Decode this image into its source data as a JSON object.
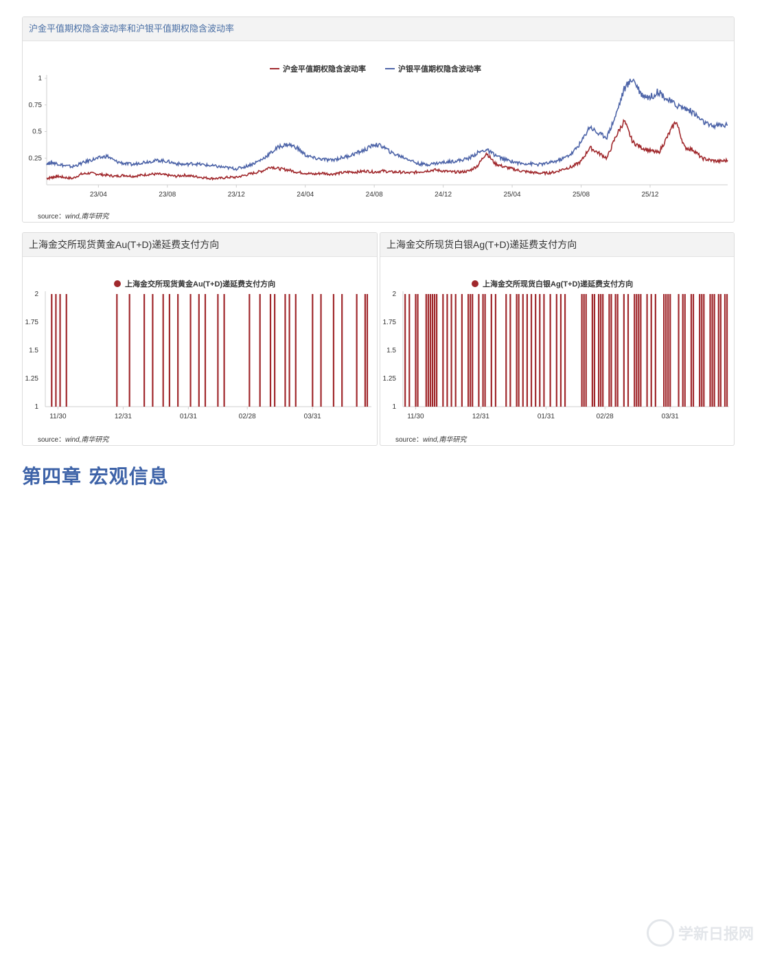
{
  "chart_data": [
    {
      "id": "vol",
      "type": "line",
      "title": "沪金平值期权隐含波动率和沪银平值期权隐含波动率",
      "legend_position": "top",
      "ylim": [
        0,
        1
      ],
      "y_ticks": [
        "1",
        "0.75",
        "0.5",
        "0.25"
      ],
      "y_tick_values": [
        1,
        0.75,
        0.5,
        0.25
      ],
      "x_ticks": [
        "23/04",
        "23/08",
        "23/12",
        "24/04",
        "24/08",
        "24/12",
        "25/04",
        "25/08",
        "25/12"
      ],
      "x_range": [
        "2023-01",
        "2026-04"
      ],
      "series": [
        {
          "name": "沪金平值期权隐含波动率",
          "color": "#a0282c",
          "points": [
            [
              0,
              0.06
            ],
            [
              0.3,
              0.07
            ],
            [
              0.6,
              0.08
            ],
            [
              1,
              0.07
            ],
            [
              1.5,
              0.06
            ],
            [
              2,
              0.1
            ],
            [
              2.5,
              0.11
            ],
            [
              3,
              0.1
            ],
            [
              3.5,
              0.09
            ],
            [
              4,
              0.08
            ],
            [
              4.5,
              0.09
            ],
            [
              5,
              0.08
            ],
            [
              5.5,
              0.09
            ],
            [
              6,
              0.1
            ],
            [
              6.5,
              0.1
            ],
            [
              7,
              0.09
            ],
            [
              7.5,
              0.08
            ],
            [
              8,
              0.09
            ],
            [
              8.5,
              0.08
            ],
            [
              9,
              0.07
            ],
            [
              9.5,
              0.06
            ],
            [
              10,
              0.06
            ],
            [
              10.5,
              0.07
            ],
            [
              11,
              0.07
            ],
            [
              11.5,
              0.09
            ],
            [
              12,
              0.11
            ],
            [
              12.5,
              0.13
            ],
            [
              13,
              0.17
            ],
            [
              13.5,
              0.15
            ],
            [
              14,
              0.14
            ],
            [
              14.5,
              0.12
            ],
            [
              15,
              0.11
            ],
            [
              15.5,
              0.1
            ],
            [
              16,
              0.11
            ],
            [
              16.5,
              0.1
            ],
            [
              17,
              0.11
            ],
            [
              17.5,
              0.12
            ],
            [
              18,
              0.12
            ],
            [
              18.5,
              0.13
            ],
            [
              19,
              0.12
            ],
            [
              19.5,
              0.13
            ],
            [
              20,
              0.12
            ],
            [
              20.5,
              0.12
            ],
            [
              21,
              0.11
            ],
            [
              21.5,
              0.12
            ],
            [
              22,
              0.13
            ],
            [
              22.5,
              0.14
            ],
            [
              23,
              0.13
            ],
            [
              23.5,
              0.12
            ],
            [
              24,
              0.12
            ],
            [
              24.5,
              0.13
            ],
            [
              25,
              0.18
            ],
            [
              25.5,
              0.3
            ],
            [
              26,
              0.2
            ],
            [
              26.5,
              0.17
            ],
            [
              27,
              0.15
            ],
            [
              27.5,
              0.13
            ],
            [
              28,
              0.12
            ],
            [
              28.5,
              0.11
            ],
            [
              29,
              0.11
            ],
            [
              29.5,
              0.12
            ],
            [
              30,
              0.15
            ],
            [
              30.5,
              0.17
            ],
            [
              31,
              0.22
            ],
            [
              31.5,
              0.35
            ],
            [
              32,
              0.3
            ],
            [
              32.5,
              0.25
            ],
            [
              33,
              0.45
            ],
            [
              33.5,
              0.6
            ],
            [
              34,
              0.4
            ],
            [
              34.5,
              0.35
            ],
            [
              35,
              0.32
            ],
            [
              35.5,
              0.3
            ],
            [
              36,
              0.45
            ],
            [
              36.5,
              0.6
            ],
            [
              37,
              0.35
            ],
            [
              37.5,
              0.33
            ],
            [
              38,
              0.25
            ],
            [
              38.5,
              0.23
            ],
            [
              39,
              0.22
            ],
            [
              39.5,
              0.23
            ]
          ]
        },
        {
          "name": "沪银平值期权隐含波动率",
          "color": "#4d64a8",
          "points": [
            [
              0,
              0.2
            ],
            [
              0.3,
              0.21
            ],
            [
              0.6,
              0.2
            ],
            [
              1,
              0.18
            ],
            [
              1.5,
              0.17
            ],
            [
              2,
              0.2
            ],
            [
              2.5,
              0.23
            ],
            [
              3,
              0.25
            ],
            [
              3.5,
              0.27
            ],
            [
              4,
              0.22
            ],
            [
              4.5,
              0.2
            ],
            [
              5,
              0.19
            ],
            [
              5.5,
              0.21
            ],
            [
              6,
              0.22
            ],
            [
              6.5,
              0.23
            ],
            [
              7,
              0.22
            ],
            [
              7.5,
              0.2
            ],
            [
              8,
              0.19
            ],
            [
              8.5,
              0.2
            ],
            [
              9,
              0.19
            ],
            [
              9.5,
              0.18
            ],
            [
              10,
              0.17
            ],
            [
              10.5,
              0.16
            ],
            [
              11,
              0.15
            ],
            [
              11.5,
              0.17
            ],
            [
              12,
              0.2
            ],
            [
              12.5,
              0.24
            ],
            [
              13,
              0.3
            ],
            [
              13.5,
              0.36
            ],
            [
              14,
              0.38
            ],
            [
              14.5,
              0.35
            ],
            [
              15,
              0.28
            ],
            [
              15.5,
              0.25
            ],
            [
              16,
              0.24
            ],
            [
              16.5,
              0.23
            ],
            [
              17,
              0.25
            ],
            [
              17.5,
              0.27
            ],
            [
              18,
              0.3
            ],
            [
              18.5,
              0.33
            ],
            [
              19,
              0.38
            ],
            [
              19.5,
              0.36
            ],
            [
              20,
              0.3
            ],
            [
              20.5,
              0.27
            ],
            [
              21,
              0.24
            ],
            [
              21.5,
              0.2
            ],
            [
              22,
              0.19
            ],
            [
              22.5,
              0.2
            ],
            [
              23,
              0.21
            ],
            [
              23.5,
              0.22
            ],
            [
              24,
              0.23
            ],
            [
              24.5,
              0.25
            ],
            [
              25,
              0.3
            ],
            [
              25.5,
              0.33
            ],
            [
              26,
              0.28
            ],
            [
              26.5,
              0.24
            ],
            [
              27,
              0.22
            ],
            [
              27.5,
              0.2
            ],
            [
              28,
              0.2
            ],
            [
              28.5,
              0.19
            ],
            [
              29,
              0.2
            ],
            [
              29.5,
              0.22
            ],
            [
              30,
              0.25
            ],
            [
              30.5,
              0.3
            ],
            [
              31,
              0.4
            ],
            [
              31.5,
              0.55
            ],
            [
              32,
              0.48
            ],
            [
              32.5,
              0.45
            ],
            [
              33,
              0.65
            ],
            [
              33.5,
              0.9
            ],
            [
              34,
              1.0
            ],
            [
              34.5,
              0.85
            ],
            [
              35,
              0.82
            ],
            [
              35.5,
              0.88
            ],
            [
              36,
              0.8
            ],
            [
              36.5,
              0.75
            ],
            [
              37,
              0.72
            ],
            [
              37.5,
              0.68
            ],
            [
              38,
              0.6
            ],
            [
              38.5,
              0.55
            ],
            [
              39,
              0.56
            ],
            [
              39.5,
              0.56
            ]
          ]
        }
      ]
    },
    {
      "id": "au",
      "type": "bar",
      "title": "上海金交所现货黄金Au(T+D)递延费支付方向",
      "legend_position": "top",
      "series_name": "上海金交所现货黄金Au(T+D)递延费支付方向",
      "color": "#a0282c",
      "ylim": [
        1,
        2
      ],
      "y_ticks": [
        "2",
        "1.75",
        "1.5",
        "1.25",
        "1"
      ],
      "y_tick_values": [
        2,
        1.75,
        1.5,
        1.25,
        1
      ],
      "x_ticks": [
        "11/30",
        "12/31",
        "01/31",
        "02/28",
        "03/31"
      ],
      "x_tick_days": [
        0,
        31,
        62,
        90,
        121
      ],
      "value_two_days": [
        -3,
        -1,
        1,
        4,
        28,
        34,
        41,
        45,
        50,
        53,
        57,
        63,
        67,
        70,
        76,
        79,
        91,
        96,
        101,
        103,
        108,
        110,
        113,
        121,
        125,
        131,
        135,
        142,
        146,
        147
      ]
    },
    {
      "id": "ag",
      "type": "bar",
      "title": "上海金交所现货白银Ag(T+D)递延费支付方向",
      "legend_position": "top",
      "series_name": "上海金交所现货白银Ag(T+D)递延费支付方向",
      "color": "#a0282c",
      "ylim": [
        1,
        2
      ],
      "y_ticks": [
        "2",
        "1.75",
        "1.5",
        "1.25",
        "1"
      ],
      "y_tick_values": [
        2,
        1.75,
        1.5,
        1.25,
        1
      ],
      "x_ticks": [
        "11/30",
        "12/31",
        "01/31",
        "02/28",
        "03/31"
      ],
      "x_tick_days": [
        0,
        31,
        62,
        90,
        121
      ],
      "value_two_days": [
        -5,
        -3,
        0,
        1,
        5,
        6,
        7,
        8,
        9,
        10,
        13,
        15,
        17,
        19,
        22,
        25,
        26,
        27,
        30,
        32,
        33,
        36,
        38,
        43,
        45,
        48,
        49,
        51,
        53,
        55,
        57,
        59,
        61,
        64,
        67,
        69,
        71,
        79,
        80,
        81,
        84,
        85,
        87,
        88,
        89,
        92,
        93,
        95,
        96,
        99,
        101,
        104,
        105,
        106,
        107,
        110,
        112,
        114,
        118,
        119,
        120,
        121,
        125,
        127,
        128,
        131,
        132,
        135,
        136,
        137,
        140,
        141,
        142,
        144,
        145,
        147,
        148
      ]
    }
  ],
  "source": {
    "prefix": "source：",
    "text": "wind,南华研究"
  },
  "chapter_title": "第四章 宏观信息",
  "watermark": "学新日报网"
}
